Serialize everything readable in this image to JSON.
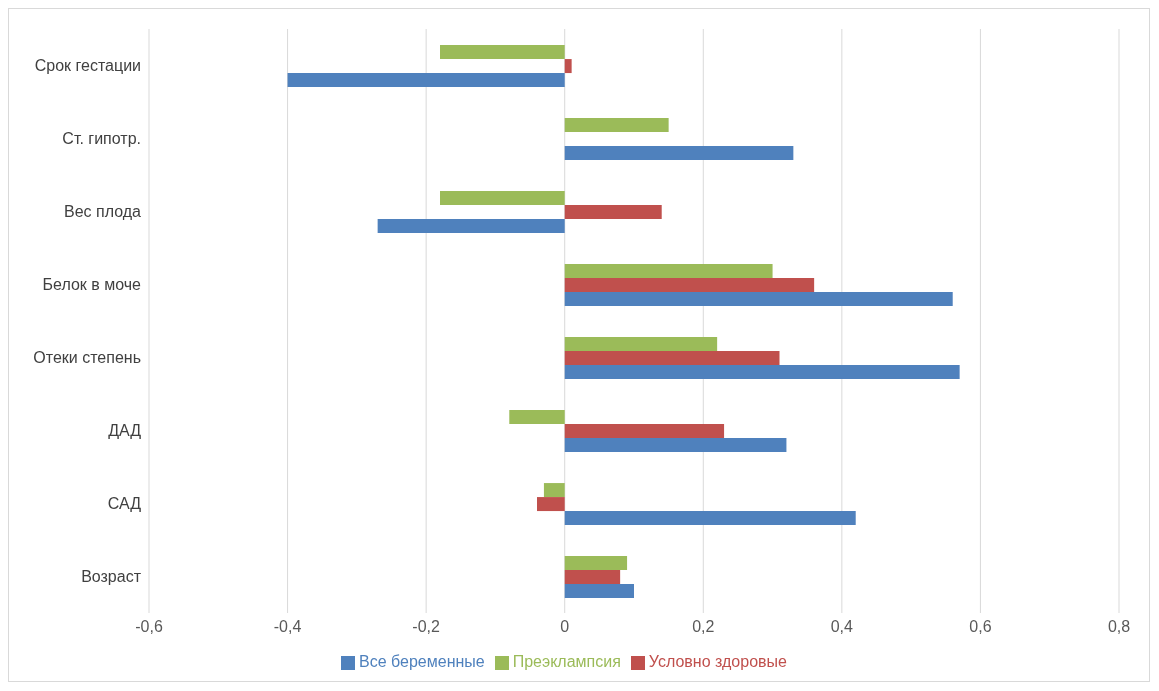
{
  "chart_data": {
    "type": "bar",
    "orientation": "horizontal",
    "categories": [
      "Срок гестации",
      "Ст. гипотр.",
      "Вес плода",
      "Белок в моче",
      "Отеки степень",
      "ДАД",
      "САД",
      "Возраст"
    ],
    "series": [
      {
        "name": "Преэклампсия",
        "color": "#9bbb59",
        "values": [
          -0.18,
          0.15,
          -0.18,
          0.3,
          0.22,
          -0.08,
          -0.03,
          0.09
        ]
      },
      {
        "name": "Условно здоровые",
        "color": "#c0504d",
        "values": [
          0.01,
          null,
          0.14,
          0.36,
          0.31,
          0.23,
          -0.04,
          0.08
        ]
      },
      {
        "name": "Все беременные",
        "color": "#4f81bd",
        "values": [
          -0.4,
          0.33,
          -0.27,
          0.56,
          0.57,
          0.32,
          0.42,
          0.1
        ]
      }
    ],
    "xlim": [
      -0.6,
      0.8
    ],
    "xticks": [
      {
        "value": -0.6,
        "label": "-0,6"
      },
      {
        "value": -0.4,
        "label": "-0,4"
      },
      {
        "value": -0.2,
        "label": "-0,2"
      },
      {
        "value": 0,
        "label": "0"
      },
      {
        "value": 0.2,
        "label": "0,2"
      },
      {
        "value": 0.4,
        "label": "0,4"
      },
      {
        "value": 0.6,
        "label": "0,6"
      },
      {
        "value": 0.8,
        "label": "0,8"
      }
    ],
    "grid": "x",
    "legend": "bottom"
  }
}
